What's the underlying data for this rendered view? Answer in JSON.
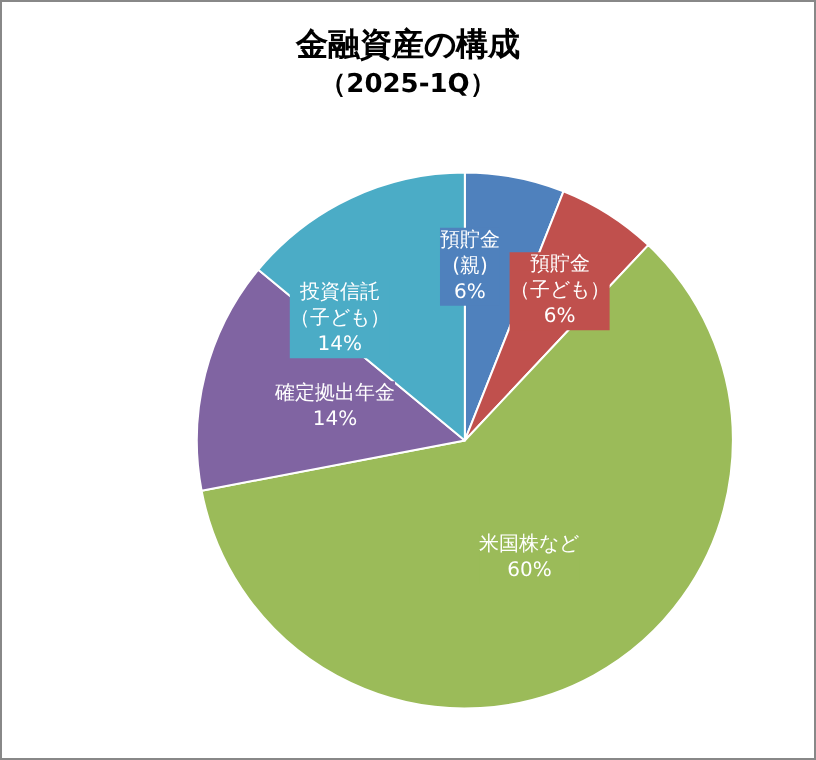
{
  "chart_data": {
    "type": "pie",
    "title": "金融資産の構成",
    "subtitle": "（2025-1Q）",
    "categories": [
      "預貯金(親)",
      "預貯金（子ども）",
      "米国株など",
      "確定拠出年金",
      "投資信託（子ども）"
    ],
    "values": [
      6,
      6,
      60,
      14,
      14
    ],
    "value_labels": [
      "6%",
      "6%",
      "60%",
      "14%",
      "14%"
    ],
    "colors": [
      "#4f81bd",
      "#c0504d",
      "#9bbb59",
      "#8064a2",
      "#4bacc6"
    ],
    "legend": false
  }
}
